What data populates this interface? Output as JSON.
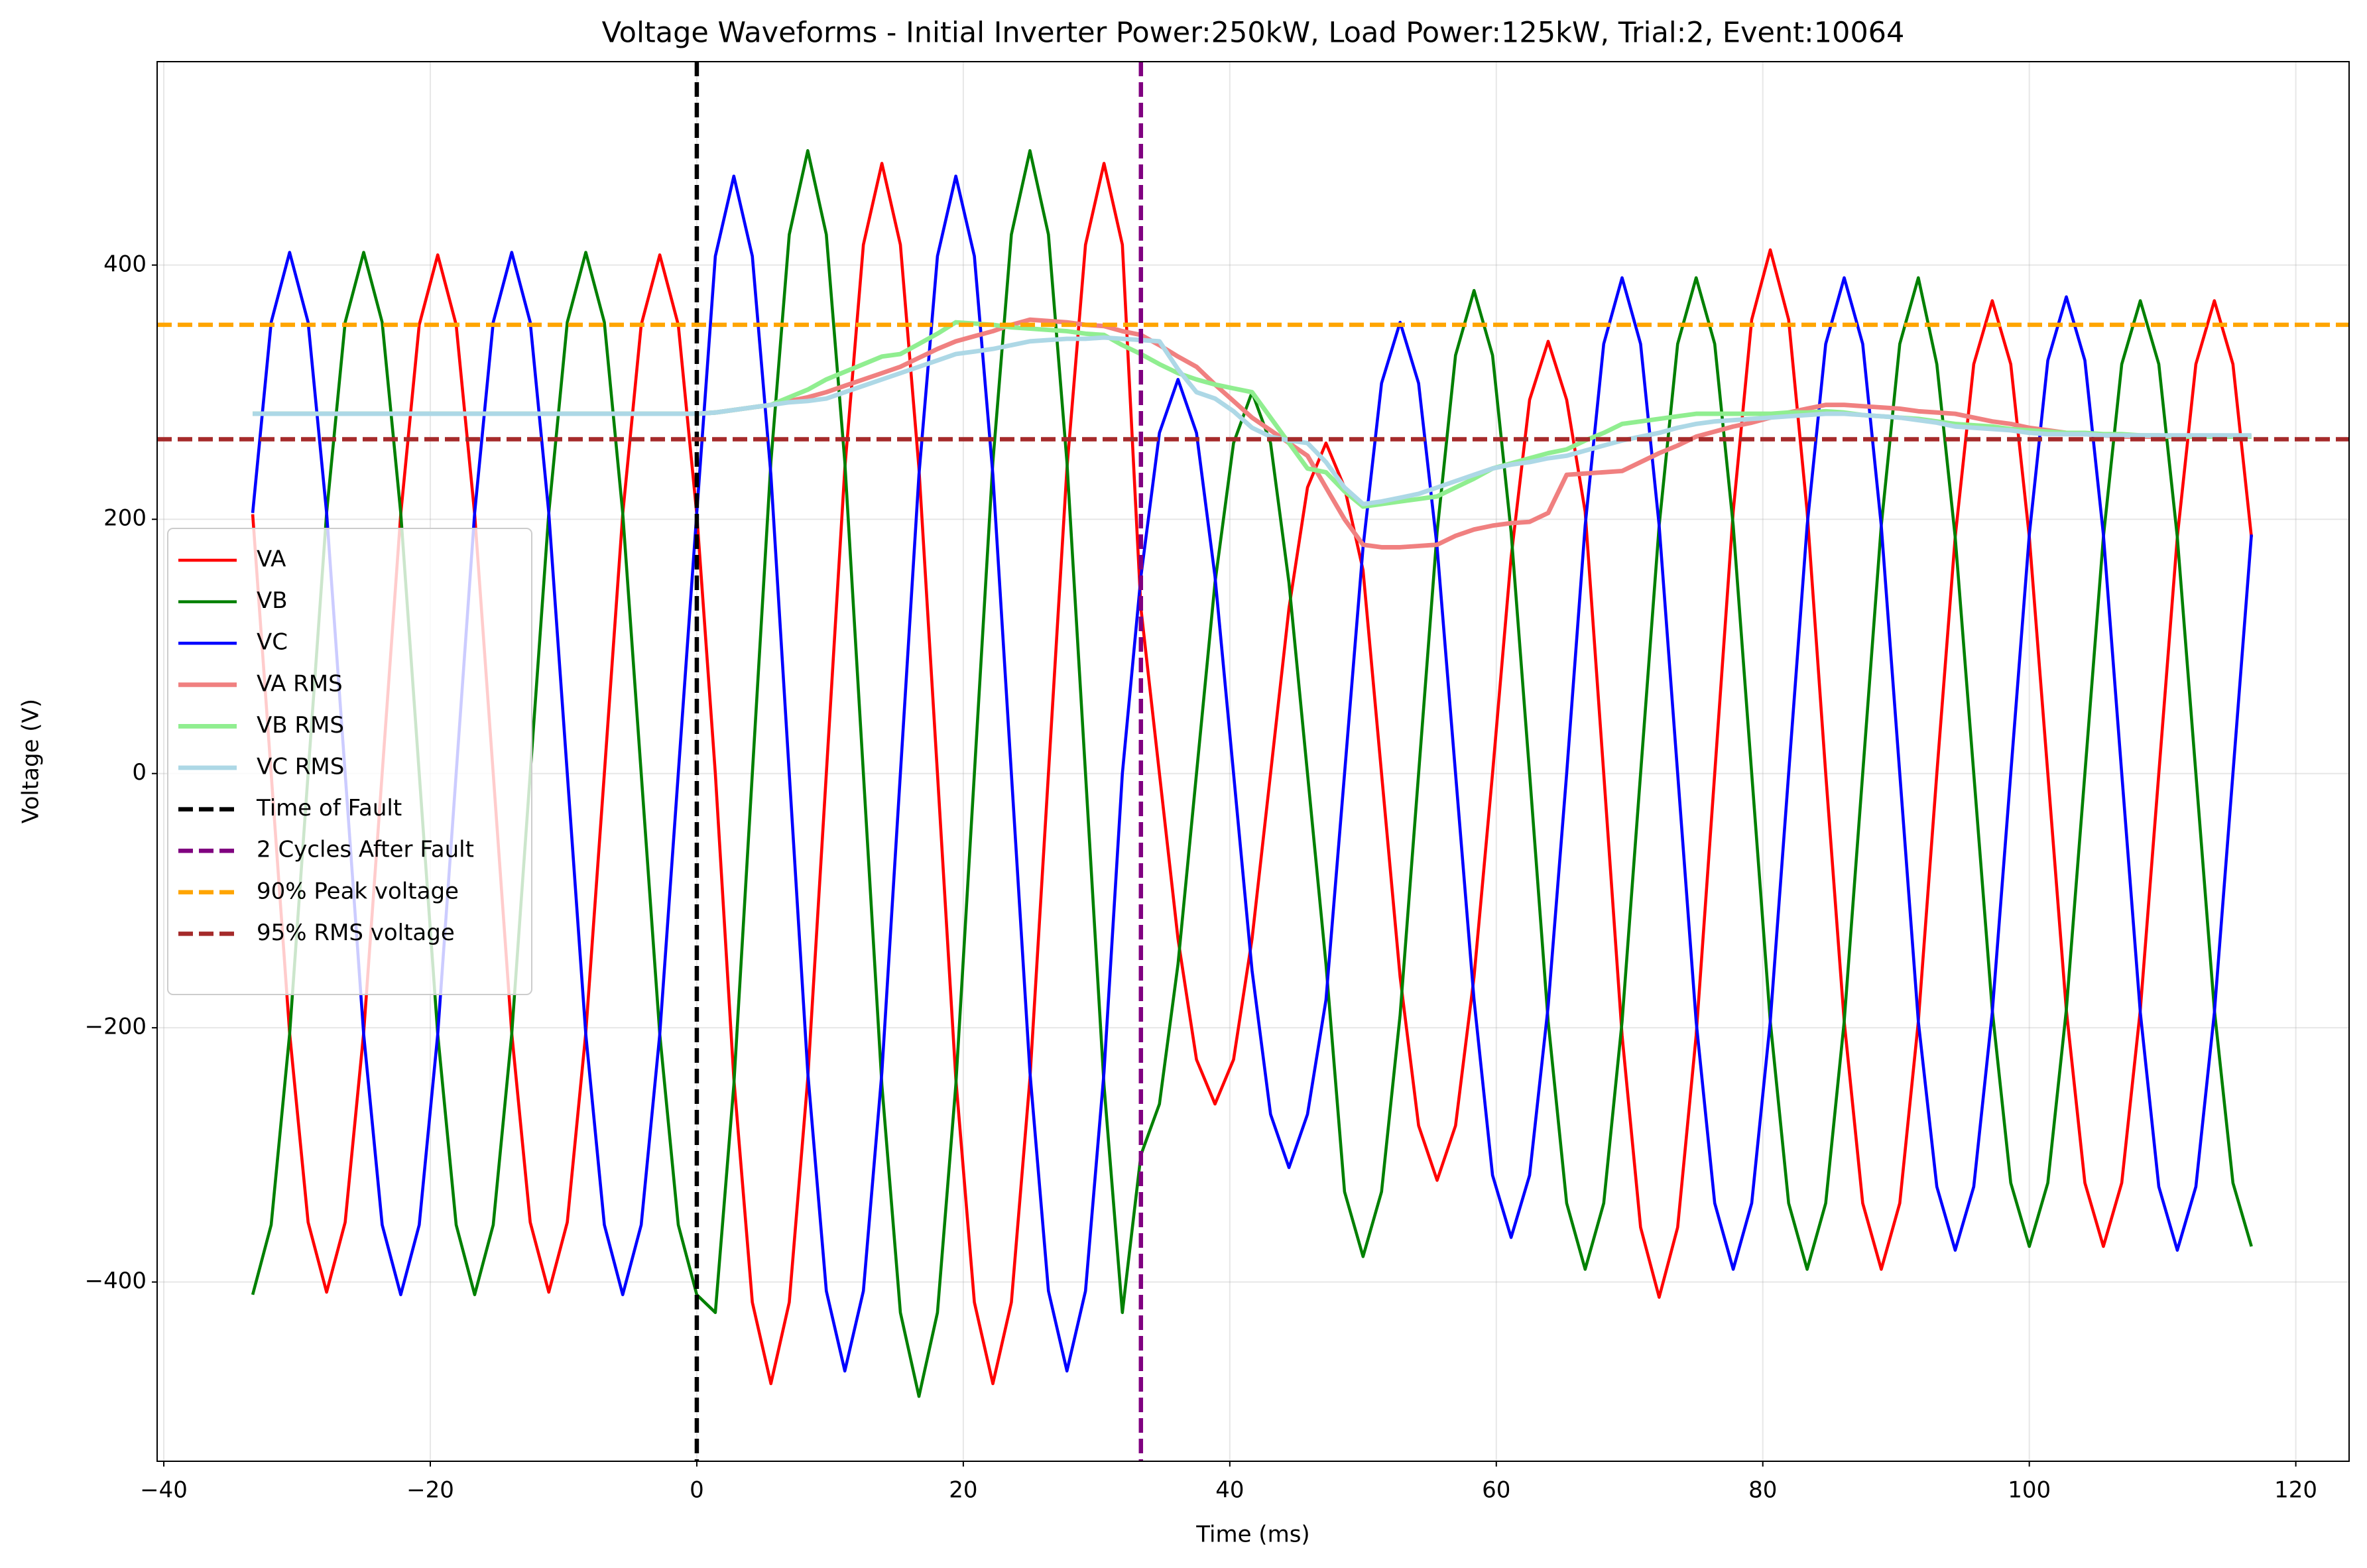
{
  "chart_data": {
    "type": "line",
    "title": "Voltage Waveforms - Initial Inverter Power:250kW, Load Power:125kW, Trial:2, Event:10064",
    "xlabel": "Time (ms)",
    "ylabel": "Voltage (V)",
    "xlim": [
      -40.5,
      124
    ],
    "ylim": [
      -541,
      560
    ],
    "xticks": [
      {
        "value": -40,
        "label": "−40"
      },
      {
        "value": -20,
        "label": "−20"
      },
      0,
      20,
      40,
      60,
      80,
      100,
      120
    ],
    "yticks": [
      {
        "value": -400,
        "label": "−400"
      },
      {
        "value": -200,
        "label": "−200"
      },
      0,
      200,
      400
    ],
    "grid": true,
    "legend": "center left",
    "x": [
      -33.33,
      -31.94,
      -30.56,
      -29.17,
      -27.78,
      -26.39,
      -25,
      -23.61,
      -22.22,
      -20.83,
      -19.44,
      -18.06,
      -16.67,
      -15.28,
      -13.89,
      -12.5,
      -11.11,
      -9.72,
      -8.33,
      -6.94,
      -5.56,
      -4.17,
      -2.78,
      -1.39,
      0,
      1.39,
      2.78,
      4.17,
      5.56,
      6.94,
      8.33,
      9.72,
      11.11,
      12.5,
      13.89,
      15.28,
      16.67,
      18.06,
      19.44,
      20.83,
      22.22,
      23.61,
      25,
      26.39,
      27.78,
      29.17,
      30.56,
      31.94,
      33.33,
      34.72,
      36.11,
      37.5,
      38.89,
      40.28,
      41.67,
      43.06,
      44.44,
      45.83,
      47.22,
      48.61,
      50,
      51.39,
      52.78,
      54.17,
      55.56,
      56.94,
      58.33,
      59.72,
      61.11,
      62.5,
      63.89,
      65.28,
      66.67,
      68.06,
      69.44,
      70.83,
      72.22,
      73.61,
      75,
      76.39,
      77.78,
      79.17,
      80.56,
      81.94,
      83.33,
      84.72,
      86.11,
      87.5,
      88.89,
      90.28,
      91.67,
      93.06,
      94.44,
      95.83,
      97.22,
      98.61,
      100,
      101.39,
      102.78,
      104.17,
      105.56,
      106.94,
      108.33,
      109.72,
      111.11,
      112.5,
      113.89,
      115.28,
      116.67
    ],
    "series": [
      {
        "name": "VA",
        "color": "#ff0000",
        "linewidth": 2,
        "values": [
          204,
          0,
          -204,
          -353,
          -408,
          -353,
          -204,
          0,
          204,
          353,
          408,
          353,
          204,
          0,
          -204,
          -353,
          -408,
          -353,
          -204,
          0,
          204,
          353,
          408,
          353,
          204,
          0,
          -240,
          -416,
          -480,
          -416,
          -240,
          0,
          240,
          416,
          480,
          416,
          240,
          0,
          -240,
          -416,
          -480,
          -416,
          -240,
          0,
          240,
          416,
          480,
          416,
          130,
          0,
          -130,
          -225,
          -260,
          -225,
          -130,
          0,
          130,
          225,
          260,
          225,
          160,
          0,
          -160,
          -277,
          -320,
          -277,
          -160,
          0,
          170,
          294,
          340,
          294,
          206,
          0,
          -206,
          -357,
          -412,
          -357,
          -206,
          0,
          206,
          357,
          412,
          357,
          206,
          0,
          -195,
          -338,
          -390,
          -338,
          -195,
          0,
          186,
          322,
          372,
          322,
          186,
          0,
          -186,
          -322,
          -372,
          -322,
          -186,
          0,
          186,
          322,
          372,
          322,
          186
        ]
      },
      {
        "name": "VB",
        "color": "#008000",
        "linewidth": 2,
        "values": [
          -410,
          -355,
          -205,
          0,
          205,
          355,
          410,
          355,
          205,
          0,
          -205,
          -355,
          -410,
          -355,
          -205,
          0,
          205,
          355,
          410,
          355,
          205,
          0,
          -205,
          -355,
          -410,
          -424,
          -245,
          0,
          245,
          424,
          490,
          424,
          245,
          0,
          -245,
          -424,
          -490,
          -424,
          -245,
          0,
          245,
          424,
          490,
          424,
          245,
          0,
          -245,
          -424,
          -300,
          -260,
          -150,
          0,
          150,
          260,
          300,
          260,
          150,
          0,
          -150,
          -329,
          -380,
          -329,
          -190,
          0,
          190,
          329,
          380,
          329,
          190,
          0,
          -195,
          -338,
          -390,
          -338,
          -195,
          0,
          195,
          338,
          390,
          338,
          195,
          0,
          -195,
          -338,
          -390,
          -338,
          -195,
          0,
          195,
          338,
          390,
          322,
          186,
          0,
          -186,
          -322,
          -372,
          -322,
          -186,
          0,
          186,
          322,
          372,
          322,
          186,
          0,
          -186,
          -322,
          -372
        ]
      },
      {
        "name": "VC",
        "color": "#0000ff",
        "linewidth": 2,
        "values": [
          205,
          355,
          410,
          355,
          205,
          0,
          -205,
          -355,
          -410,
          -355,
          -205,
          0,
          205,
          355,
          410,
          355,
          205,
          0,
          -205,
          -355,
          -410,
          -355,
          -205,
          0,
          205,
          407,
          470,
          407,
          235,
          0,
          -235,
          -407,
          -470,
          -407,
          -235,
          0,
          235,
          407,
          470,
          407,
          235,
          0,
          -235,
          -407,
          -470,
          -407,
          -235,
          0,
          155,
          268,
          310,
          268,
          155,
          0,
          -155,
          -268,
          -310,
          -268,
          -178,
          0,
          178,
          307,
          355,
          307,
          178,
          0,
          -178,
          -316,
          -365,
          -316,
          -183,
          0,
          195,
          338,
          390,
          338,
          195,
          0,
          -195,
          -338,
          -390,
          -338,
          -195,
          0,
          195,
          338,
          390,
          338,
          195,
          0,
          -195,
          -325,
          -375,
          -325,
          -188,
          0,
          188,
          325,
          375,
          325,
          188,
          0,
          -188,
          -325,
          -375,
          -325,
          -188,
          0,
          188
        ]
      },
      {
        "name": "VA RMS",
        "color": "#f08080",
        "linewidth": 3,
        "values": [
          283,
          283,
          283,
          283,
          283,
          283,
          283,
          283,
          283,
          283,
          283,
          283,
          283,
          283,
          283,
          283,
          283,
          283,
          283,
          283,
          283,
          283,
          283,
          283,
          283,
          284,
          286,
          288,
          290,
          293,
          296,
          300,
          305,
          310,
          315,
          320,
          327,
          334,
          340,
          344,
          348,
          353,
          357,
          356,
          355,
          353,
          352,
          348,
          345,
          337,
          328,
          320,
          306,
          293,
          280,
          270,
          260,
          250,
          225,
          200,
          180,
          178,
          178,
          179,
          180,
          187,
          192,
          195,
          197,
          198,
          205,
          235,
          236,
          237,
          238,
          245,
          252,
          258,
          265,
          269,
          273,
          276,
          280,
          284,
          287,
          290,
          290,
          289,
          288,
          287,
          285,
          284,
          283,
          280,
          277,
          275,
          272,
          270,
          268,
          267,
          266,
          265,
          265,
          265,
          265,
          265,
          265,
          265,
          265
        ]
      },
      {
        "name": "VB RMS",
        "color": "#90ee90",
        "linewidth": 3,
        "values": [
          283,
          283,
          283,
          283,
          283,
          283,
          283,
          283,
          283,
          283,
          283,
          283,
          283,
          283,
          283,
          283,
          283,
          283,
          283,
          283,
          283,
          283,
          283,
          283,
          283,
          284,
          286,
          288,
          290,
          296,
          302,
          310,
          316,
          322,
          328,
          330,
          338,
          346,
          355,
          354,
          353,
          351,
          350,
          349,
          348,
          346,
          345,
          337,
          330,
          322,
          315,
          310,
          306,
          303,
          300,
          280,
          260,
          240,
          237,
          222,
          210,
          212,
          214,
          216,
          218,
          225,
          232,
          240,
          244,
          248,
          252,
          255,
          262,
          268,
          275,
          277,
          279,
          281,
          283,
          283,
          283,
          283,
          283,
          284,
          284,
          285,
          284,
          282,
          281,
          280,
          279,
          277,
          275,
          274,
          273,
          271,
          270,
          269,
          268,
          268,
          267,
          267,
          266,
          266,
          265,
          265,
          265,
          265,
          265
        ]
      },
      {
        "name": "VC RMS",
        "color": "#add8e6",
        "linewidth": 3,
        "values": [
          283,
          283,
          283,
          283,
          283,
          283,
          283,
          283,
          283,
          283,
          283,
          283,
          283,
          283,
          283,
          283,
          283,
          283,
          283,
          283,
          283,
          283,
          283,
          283,
          283,
          284,
          286,
          288,
          290,
          292,
          293,
          295,
          300,
          305,
          310,
          315,
          320,
          325,
          330,
          332,
          334,
          337,
          340,
          341,
          342,
          342,
          343,
          342,
          341,
          340,
          318,
          300,
          295,
          285,
          272,
          265,
          262,
          260,
          245,
          225,
          212,
          214,
          217,
          220,
          225,
          230,
          235,
          240,
          243,
          245,
          248,
          250,
          254,
          258,
          262,
          265,
          268,
          272,
          275,
          277,
          278,
          279,
          280,
          281,
          282,
          283,
          283,
          282,
          281,
          280,
          278,
          276,
          273,
          272,
          271,
          270,
          268,
          267,
          267,
          267,
          266,
          266,
          266,
          266,
          266,
          266,
          266,
          266,
          266
        ]
      }
    ],
    "vlines": [
      {
        "name": "Time of Fault",
        "color": "#000000",
        "linestyle": "dashed",
        "x": 0
      },
      {
        "name": "2 Cycles After Fault",
        "color": "#800080",
        "linestyle": "dashed",
        "x": 33.33
      }
    ],
    "hlines": [
      {
        "name": "90% Peak voltage",
        "color": "#ffa500",
        "linestyle": "dashed",
        "y": 353
      },
      {
        "name": "95% RMS voltage",
        "color": "#a52a2a",
        "linestyle": "dashed",
        "y": 263
      }
    ]
  }
}
